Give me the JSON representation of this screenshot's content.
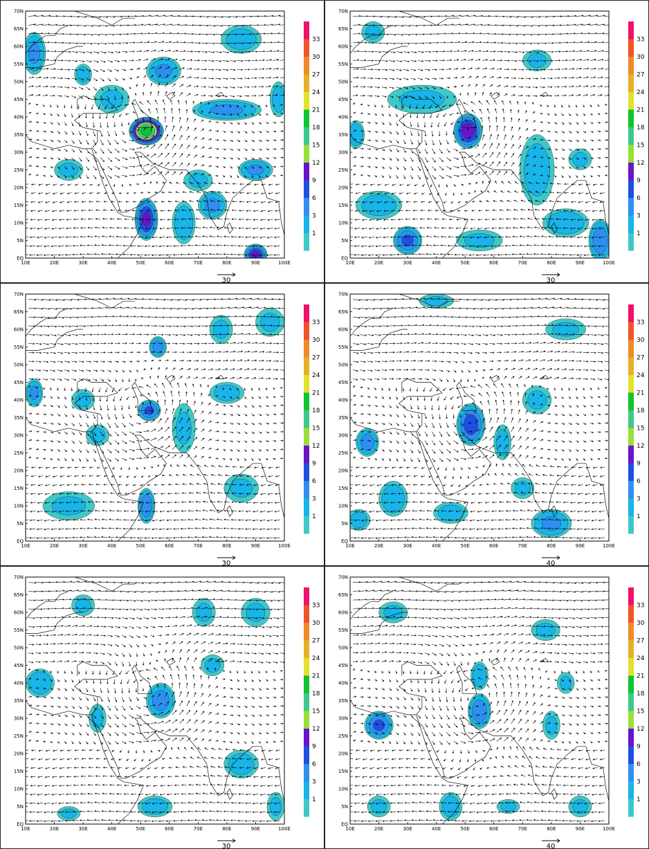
{
  "figure": {
    "panels": [
      {
        "id": "p1",
        "row": 0,
        "col": 0,
        "ref_vector_label": "30",
        "blobs": [
          {
            "lon": 52,
            "lat": 36,
            "rx": 6,
            "ry": 4,
            "max": 22
          },
          {
            "lon": 52,
            "lat": 11,
            "rx": 4,
            "ry": 6,
            "max": 12
          },
          {
            "lon": 90,
            "lat": 1,
            "rx": 4,
            "ry": 3,
            "max": 12
          },
          {
            "lon": 58,
            "lat": 53,
            "rx": 6,
            "ry": 4,
            "max": 6
          },
          {
            "lon": 80,
            "lat": 42,
            "rx": 12,
            "ry": 3,
            "max": 6
          },
          {
            "lon": 13,
            "lat": 58,
            "rx": 4,
            "ry": 6,
            "max": 6
          },
          {
            "lon": 30,
            "lat": 52,
            "rx": 3,
            "ry": 3,
            "max": 4
          },
          {
            "lon": 90,
            "lat": 25,
            "rx": 6,
            "ry": 3,
            "max": 6
          },
          {
            "lon": 75,
            "lat": 15,
            "rx": 5,
            "ry": 4,
            "max": 6
          },
          {
            "lon": 65,
            "lat": 10,
            "rx": 4,
            "ry": 6,
            "max": 5
          },
          {
            "lon": 25,
            "lat": 25,
            "rx": 5,
            "ry": 3,
            "max": 3
          },
          {
            "lon": 98,
            "lat": 45,
            "rx": 3,
            "ry": 5,
            "max": 4
          },
          {
            "lon": 40,
            "lat": 45,
            "rx": 6,
            "ry": 4,
            "max": 3
          },
          {
            "lon": 85,
            "lat": 62,
            "rx": 7,
            "ry": 4,
            "max": 4
          },
          {
            "lon": 70,
            "lat": 22,
            "rx": 5,
            "ry": 3,
            "max": 3
          }
        ]
      },
      {
        "id": "p2",
        "row": 0,
        "col": 1,
        "ref_vector_label": "30",
        "blobs": [
          {
            "lon": 51,
            "lat": 36,
            "rx": 5,
            "ry": 5,
            "max": 13
          },
          {
            "lon": 30,
            "lat": 5,
            "rx": 5,
            "ry": 4,
            "max": 9
          },
          {
            "lon": 97,
            "lat": 5,
            "rx": 4,
            "ry": 6,
            "max": 8
          },
          {
            "lon": 75,
            "lat": 25,
            "rx": 6,
            "ry": 10,
            "max": 4
          },
          {
            "lon": 35,
            "lat": 45,
            "rx": 12,
            "ry": 4,
            "max": 3
          },
          {
            "lon": 20,
            "lat": 15,
            "rx": 8,
            "ry": 4,
            "max": 4
          },
          {
            "lon": 12,
            "lat": 35,
            "rx": 3,
            "ry": 4,
            "max": 5
          },
          {
            "lon": 85,
            "lat": 10,
            "rx": 8,
            "ry": 4,
            "max": 5
          },
          {
            "lon": 55,
            "lat": 5,
            "rx": 8,
            "ry": 3,
            "max": 3
          },
          {
            "lon": 18,
            "lat": 64,
            "rx": 4,
            "ry": 3,
            "max": 3
          },
          {
            "lon": 90,
            "lat": 28,
            "rx": 4,
            "ry": 3,
            "max": 3
          },
          {
            "lon": 75,
            "lat": 56,
            "rx": 5,
            "ry": 3,
            "max": 3
          }
        ]
      },
      {
        "id": "p3",
        "row": 1,
        "col": 0,
        "ref_vector_label": "30",
        "blobs": [
          {
            "lon": 53,
            "lat": 37,
            "rx": 4,
            "ry": 3,
            "max": 9
          },
          {
            "lon": 52,
            "lat": 10,
            "rx": 3,
            "ry": 5,
            "max": 8
          },
          {
            "lon": 56,
            "lat": 55,
            "rx": 3,
            "ry": 3,
            "max": 7
          },
          {
            "lon": 13,
            "lat": 42,
            "rx": 3,
            "ry": 4,
            "max": 6
          },
          {
            "lon": 65,
            "lat": 32,
            "rx": 4,
            "ry": 7,
            "max": 3
          },
          {
            "lon": 80,
            "lat": 42,
            "rx": 6,
            "ry": 3,
            "max": 4
          },
          {
            "lon": 25,
            "lat": 10,
            "rx": 9,
            "ry": 4,
            "max": 3
          },
          {
            "lon": 85,
            "lat": 15,
            "rx": 6,
            "ry": 4,
            "max": 3
          },
          {
            "lon": 35,
            "lat": 30,
            "rx": 4,
            "ry": 3,
            "max": 3
          },
          {
            "lon": 78,
            "lat": 60,
            "rx": 4,
            "ry": 4,
            "max": 3
          },
          {
            "lon": 95,
            "lat": 62,
            "rx": 5,
            "ry": 4,
            "max": 3
          },
          {
            "lon": 30,
            "lat": 40,
            "rx": 4,
            "ry": 3,
            "max": 3
          }
        ]
      },
      {
        "id": "p4",
        "row": 1,
        "col": 1,
        "ref_vector_label": "40",
        "blobs": [
          {
            "lon": 52,
            "lat": 33,
            "rx": 5,
            "ry": 6,
            "max": 10
          },
          {
            "lon": 16,
            "lat": 28,
            "rx": 4,
            "ry": 4,
            "max": 7
          },
          {
            "lon": 80,
            "lat": 5,
            "rx": 7,
            "ry": 4,
            "max": 6
          },
          {
            "lon": 25,
            "lat": 12,
            "rx": 5,
            "ry": 5,
            "max": 5
          },
          {
            "lon": 63,
            "lat": 28,
            "rx": 3,
            "ry": 5,
            "max": 4
          },
          {
            "lon": 45,
            "lat": 8,
            "rx": 6,
            "ry": 3,
            "max": 4
          },
          {
            "lon": 75,
            "lat": 40,
            "rx": 5,
            "ry": 4,
            "max": 3
          },
          {
            "lon": 13,
            "lat": 6,
            "rx": 4,
            "ry": 3,
            "max": 4
          },
          {
            "lon": 85,
            "lat": 60,
            "rx": 7,
            "ry": 3,
            "max": 3
          },
          {
            "lon": 70,
            "lat": 15,
            "rx": 4,
            "ry": 3,
            "max": 3
          },
          {
            "lon": 40,
            "lat": 68,
            "rx": 6,
            "ry": 2,
            "max": 3
          }
        ]
      },
      {
        "id": "p5",
        "row": 2,
        "col": 0,
        "ref_vector_label": "30",
        "blobs": [
          {
            "lon": 57,
            "lat": 35,
            "rx": 5,
            "ry": 5,
            "max": 7
          },
          {
            "lon": 15,
            "lat": 40,
            "rx": 5,
            "ry": 4,
            "max": 5
          },
          {
            "lon": 55,
            "lat": 5,
            "rx": 6,
            "ry": 3,
            "max": 4
          },
          {
            "lon": 85,
            "lat": 17,
            "rx": 6,
            "ry": 4,
            "max": 4
          },
          {
            "lon": 35,
            "lat": 30,
            "rx": 3,
            "ry": 4,
            "max": 3
          },
          {
            "lon": 90,
            "lat": 60,
            "rx": 5,
            "ry": 4,
            "max": 3
          },
          {
            "lon": 72,
            "lat": 60,
            "rx": 4,
            "ry": 4,
            "max": 3
          },
          {
            "lon": 25,
            "lat": 3,
            "rx": 4,
            "ry": 2,
            "max": 3
          },
          {
            "lon": 97,
            "lat": 5,
            "rx": 3,
            "ry": 4,
            "max": 3
          },
          {
            "lon": 75,
            "lat": 45,
            "rx": 4,
            "ry": 3,
            "max": 3
          },
          {
            "lon": 30,
            "lat": 62,
            "rx": 4,
            "ry": 3,
            "max": 3
          }
        ]
      },
      {
        "id": "p6",
        "row": 2,
        "col": 1,
        "ref_vector_label": "40",
        "blobs": [
          {
            "lon": 20,
            "lat": 28,
            "rx": 5,
            "ry": 4,
            "max": 9
          },
          {
            "lon": 55,
            "lat": 32,
            "rx": 4,
            "ry": 5,
            "max": 8
          },
          {
            "lon": 55,
            "lat": 42,
            "rx": 3,
            "ry": 4,
            "max": 5
          },
          {
            "lon": 45,
            "lat": 5,
            "rx": 4,
            "ry": 4,
            "max": 4
          },
          {
            "lon": 20,
            "lat": 5,
            "rx": 4,
            "ry": 3,
            "max": 3
          },
          {
            "lon": 90,
            "lat": 5,
            "rx": 4,
            "ry": 3,
            "max": 3
          },
          {
            "lon": 78,
            "lat": 55,
            "rx": 5,
            "ry": 3,
            "max": 3
          },
          {
            "lon": 80,
            "lat": 28,
            "rx": 3,
            "ry": 4,
            "max": 3
          },
          {
            "lon": 65,
            "lat": 5,
            "rx": 4,
            "ry": 2,
            "max": 3
          },
          {
            "lon": 25,
            "lat": 60,
            "rx": 5,
            "ry": 3,
            "max": 3
          },
          {
            "lon": 85,
            "lat": 40,
            "rx": 3,
            "ry": 3,
            "max": 3
          }
        ]
      }
    ]
  },
  "colorbar": {
    "labels": [
      "33",
      "30",
      "27",
      "24",
      "21",
      "18",
      "15",
      "12",
      "9",
      "6",
      "3",
      "1"
    ],
    "levels": [
      1,
      3,
      6,
      9,
      12,
      15,
      18,
      21,
      24,
      27,
      30,
      33,
      36
    ],
    "colors": [
      "#3fc8c8",
      "#19b4e8",
      "#2e8ff0",
      "#1f4ee0",
      "#6a13c8",
      "#9ade3a",
      "#3cc98a",
      "#10c430",
      "#e2e22a",
      "#e7b028",
      "#ef8a26",
      "#f0532a",
      "#f0106c"
    ]
  },
  "axes": {
    "lat_labels": [
      "EQ",
      "5N",
      "10N",
      "15N",
      "20N",
      "25N",
      "30N",
      "35N",
      "40N",
      "45N",
      "50N",
      "55N",
      "60N",
      "65N",
      "70N"
    ],
    "lon_labels": [
      "10E",
      "20E",
      "30E",
      "40E",
      "50E",
      "60E",
      "70E",
      "80E",
      "90E",
      "100E"
    ],
    "lon_range": [
      10,
      100
    ],
    "lat_range": [
      0,
      70
    ]
  }
}
